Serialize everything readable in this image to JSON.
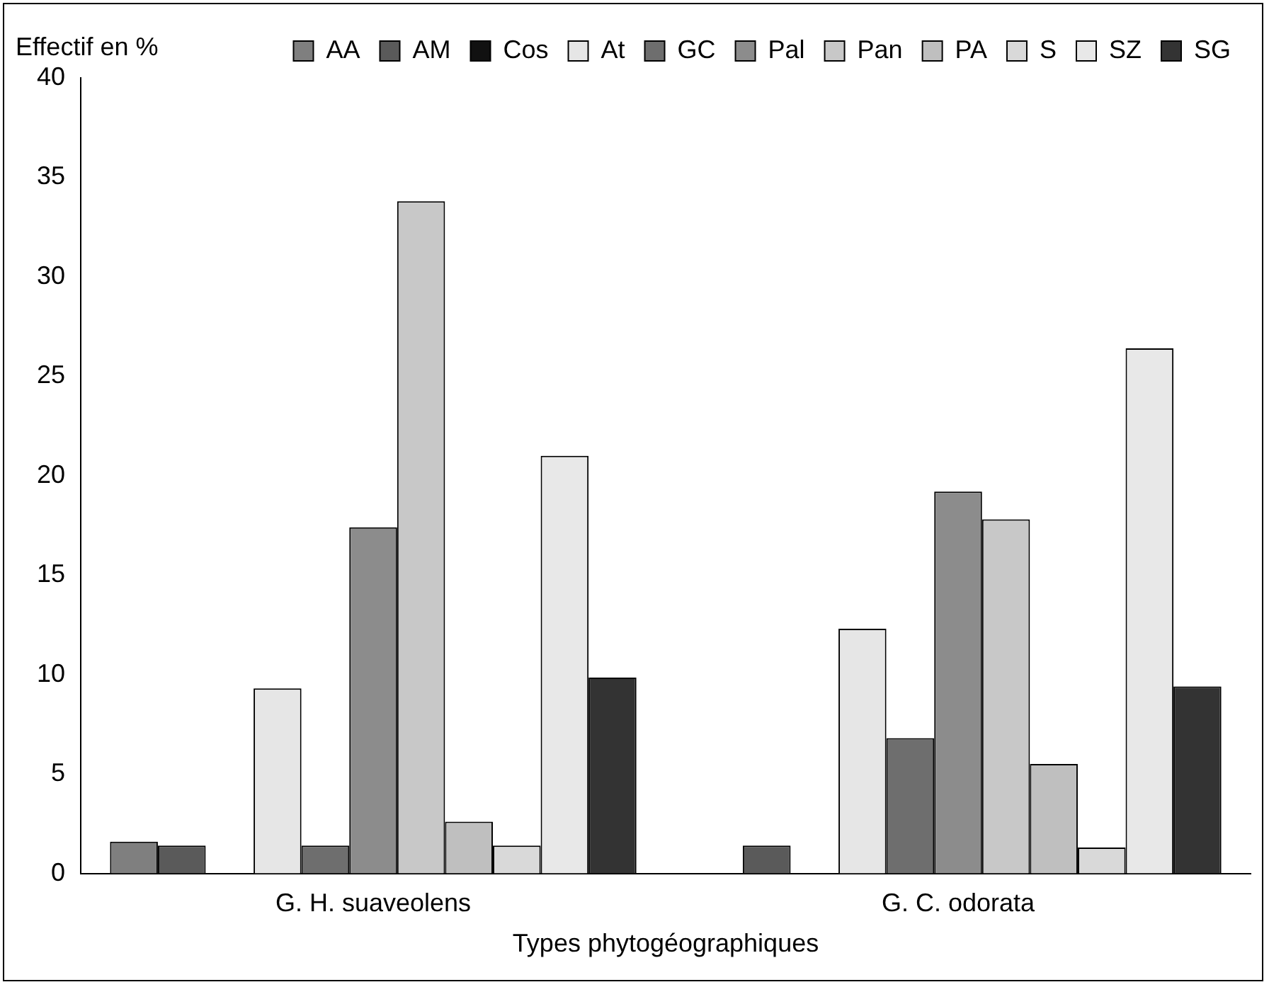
{
  "chart_data": {
    "type": "bar",
    "xlabel": "Types phytogéographiques",
    "ylabel": "Effectif en %",
    "categories": [
      "G. H. suaveolens",
      "G. C. odorata"
    ],
    "series": [
      {
        "name": "AA",
        "color": "#7f7f7f",
        "values": [
          1.6,
          0
        ]
      },
      {
        "name": "AM",
        "color": "#5a5a5a",
        "values": [
          1.4,
          1.4
        ]
      },
      {
        "name": "Cos",
        "color": "#111111",
        "values": [
          0,
          0
        ]
      },
      {
        "name": "At",
        "color": "#e6e6e6",
        "values": [
          9.3,
          12.3
        ]
      },
      {
        "name": "GC",
        "color": "#6e6e6e",
        "values": [
          1.4,
          6.8
        ]
      },
      {
        "name": "Pal",
        "color": "#8c8c8c",
        "values": [
          17.4,
          19.2
        ]
      },
      {
        "name": "Pan",
        "color": "#c8c8c8",
        "values": [
          33.8,
          17.8
        ]
      },
      {
        "name": "PA",
        "color": "#bfbfbf",
        "values": [
          2.6,
          5.5
        ]
      },
      {
        "name": "S",
        "color": "#d9d9d9",
        "values": [
          1.4,
          1.3
        ]
      },
      {
        "name": "SZ",
        "color": "#e8e8e8",
        "values": [
          21,
          26.4
        ]
      },
      {
        "name": "SG",
        "color": "#333333",
        "values": [
          9.85,
          9.4
        ]
      }
    ],
    "ylim": [
      0,
      40
    ],
    "yticks": [
      0,
      5,
      10,
      15,
      20,
      25,
      30,
      35,
      40
    ],
    "grid": false,
    "legend": "top right"
  }
}
